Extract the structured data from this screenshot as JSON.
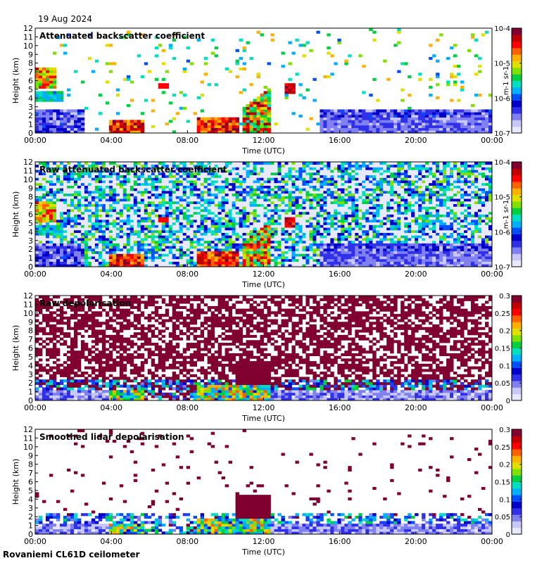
{
  "header": {
    "date": "19 Aug 2024"
  },
  "footer": {
    "site": "Rovaniemi CL61D ceilometer"
  },
  "chart_data": [
    {
      "type": "heatmap",
      "title": "Attenuated backscatter coefficient",
      "xlabel": "Time (UTC)",
      "ylabel": "Height (km)",
      "xticks": [
        "00:00",
        "04:00",
        "08:00",
        "12:00",
        "16:00",
        "20:00",
        "00:00"
      ],
      "yticks": [
        0,
        1,
        2,
        3,
        4,
        5,
        6,
        7,
        8,
        9,
        10,
        11,
        12
      ],
      "xlim_hours": [
        0,
        24
      ],
      "ylim": [
        0,
        12
      ],
      "colorbar": {
        "scale": "log",
        "range": [
          1e-07,
          0.0001
        ],
        "ticks": [
          "10-7",
          "10-6",
          "10-5",
          "10-4"
        ],
        "unit": "m-1 sr-1"
      }
    },
    {
      "type": "heatmap",
      "title": "Raw attenuated backscatter coefficient",
      "xlabel": "Time (UTC)",
      "ylabel": "Height (km)",
      "xticks": [
        "00:00",
        "04:00",
        "08:00",
        "12:00",
        "16:00",
        "20:00",
        "00:00"
      ],
      "yticks": [
        0,
        1,
        2,
        3,
        4,
        5,
        6,
        7,
        8,
        9,
        10,
        11,
        12
      ],
      "xlim_hours": [
        0,
        24
      ],
      "ylim": [
        0,
        12
      ],
      "colorbar": {
        "scale": "log",
        "range": [
          1e-07,
          0.0001
        ],
        "ticks": [
          "10-7",
          "10-6",
          "10-5",
          "10-4"
        ],
        "unit": "m-1 sr-1"
      }
    },
    {
      "type": "heatmap",
      "title": "Raw depolarisation",
      "xlabel": "Time (UTC)",
      "ylabel": "Height (km)",
      "xticks": [
        "00:00",
        "04:00",
        "08:00",
        "12:00",
        "16:00",
        "20:00",
        "00:00"
      ],
      "yticks": [
        0,
        1,
        2,
        3,
        4,
        5,
        6,
        7,
        8,
        9,
        10,
        11,
        12
      ],
      "xlim_hours": [
        0,
        24
      ],
      "ylim": [
        0,
        12
      ],
      "colorbar": {
        "scale": "linear",
        "range": [
          0,
          0.3
        ],
        "ticks": [
          "0",
          "0.05",
          "0.1",
          "0.15",
          "0.2",
          "0.25",
          "0.3"
        ],
        "unit": ""
      }
    },
    {
      "type": "heatmap",
      "title": "Smoothed lidar depolarisation",
      "xlabel": "Time (UTC)",
      "ylabel": "Height (km)",
      "xticks": [
        "00:00",
        "04:00",
        "08:00",
        "12:00",
        "16:00",
        "20:00",
        "00:00"
      ],
      "yticks": [
        0,
        1,
        2,
        3,
        4,
        5,
        6,
        7,
        8,
        9,
        10,
        11,
        12
      ],
      "xlim_hours": [
        0,
        24
      ],
      "ylim": [
        0,
        12
      ],
      "colorbar": {
        "scale": "linear",
        "range": [
          0,
          0.3
        ],
        "ticks": [
          "0",
          "0.05",
          "0.1",
          "0.15",
          "0.2",
          "0.25",
          "0.3"
        ],
        "unit": ""
      }
    }
  ]
}
